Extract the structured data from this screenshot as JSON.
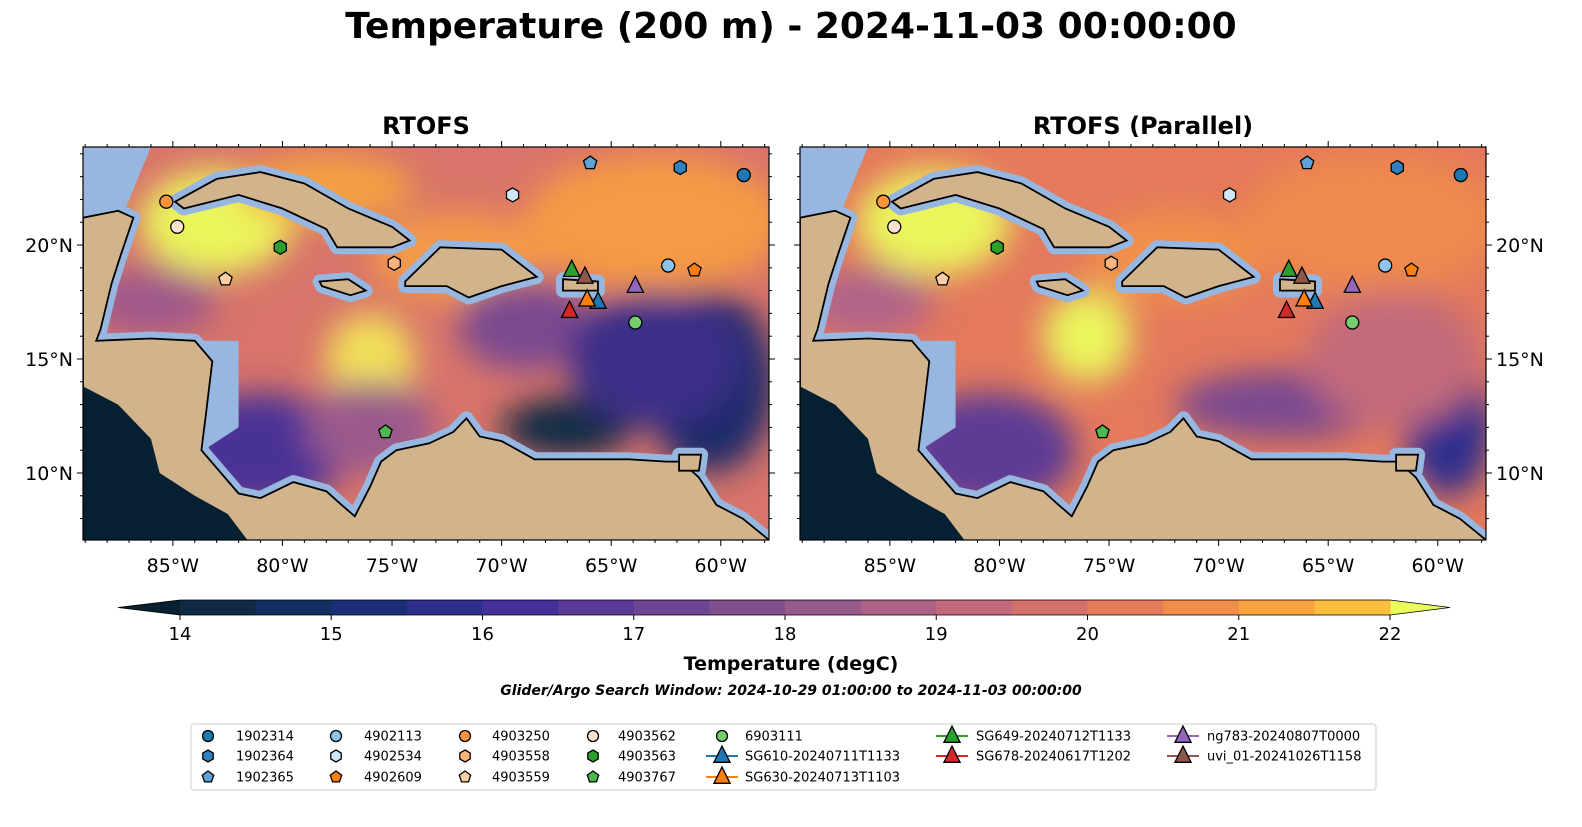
{
  "title": "Temperature (200 m) - 2024-11-03 00:00:00",
  "panels": [
    {
      "title": "RTOFS",
      "model": "rtofs"
    },
    {
      "title": "RTOFS (Parallel)",
      "model": "parallel"
    }
  ],
  "chart_data": {
    "type": "heatmap",
    "extent": {
      "lon": [
        -89.1,
        -57.8
      ],
      "lat": [
        7.06,
        24.3
      ]
    },
    "lon_ticks": [
      -85,
      -80,
      -75,
      -70,
      -65,
      -60
    ],
    "lon_tick_labels": [
      "85°W",
      "80°W",
      "75°W",
      "70°W",
      "65°W",
      "60°W"
    ],
    "lat_ticks": [
      10,
      15,
      20
    ],
    "lat_tick_labels": [
      "10°N",
      "15°N",
      "20°N"
    ],
    "colorbar": {
      "label": "Temperature (degC)",
      "min": 14,
      "max": 22,
      "step": 0.5,
      "extend": "both",
      "ticks": [
        14,
        15,
        16,
        17,
        18,
        19,
        20,
        21,
        22
      ],
      "tick_labels": [
        "14",
        "15",
        "16",
        "17",
        "18",
        "19",
        "20",
        "21",
        "22"
      ],
      "colors": [
        "#0f2a45",
        "#132f5f",
        "#1b2f78",
        "#2d2d8c",
        "#45309a",
        "#5a3a96",
        "#6d4592",
        "#81508f",
        "#965a8c",
        "#ab6286",
        "#c06a7b",
        "#d2716c",
        "#e47c5c",
        "#f08e4b",
        "#f7a43f",
        "#fbbe3f"
      ],
      "under_color": "#08202f",
      "over_color": "#e9fb5d"
    },
    "search_window": "Glider/Argo Search Window: 2024-10-29 01:00:00 to 2024-11-03 00:00:00",
    "observations": [
      {
        "id": "1902314",
        "shape": "circle",
        "color": "#1f77b4",
        "lon": -58.95,
        "lat": 23.07
      },
      {
        "id": "1902364",
        "shape": "hexagon",
        "color": "#2f82bf",
        "lon": -61.85,
        "lat": 23.4
      },
      {
        "id": "1902365",
        "shape": "pentagon",
        "color": "#5aa2d8",
        "lon": -65.96,
        "lat": 23.6
      },
      {
        "id": "4902113",
        "shape": "circle",
        "color": "#8ec3ec",
        "lon": -62.4,
        "lat": 19.1
      },
      {
        "id": "4902534",
        "shape": "hexagon",
        "color": "#cfe6f8",
        "lon": -69.5,
        "lat": 22.2
      },
      {
        "id": "4902609",
        "shape": "pentagon",
        "color": "#ff7f0e",
        "lon": -61.2,
        "lat": 18.9
      },
      {
        "id": "4903250",
        "shape": "circle",
        "color": "#fd933b",
        "lon": -85.3,
        "lat": 21.9
      },
      {
        "id": "4903558",
        "shape": "hexagon",
        "color": "#fdb47a",
        "lon": -74.9,
        "lat": 19.2
      },
      {
        "id": "4903559",
        "shape": "pentagon",
        "color": "#fdcfa6",
        "lon": -82.6,
        "lat": 18.5
      },
      {
        "id": "4903562",
        "shape": "circle",
        "color": "#fde3cc",
        "lon": -84.8,
        "lat": 20.8
      },
      {
        "id": "4903563",
        "shape": "hexagon",
        "color": "#2ca02c",
        "lon": -80.1,
        "lat": 19.9
      },
      {
        "id": "4903767",
        "shape": "pentagon",
        "color": "#4db84d",
        "lon": -75.3,
        "lat": 11.8
      },
      {
        "id": "6903111",
        "shape": "circle",
        "color": "#74cf6c",
        "lon": -63.9,
        "lat": 16.6
      },
      {
        "id": "SG610-20240711T1133",
        "shape": "triangle",
        "color": "#1f77b4",
        "lon": -65.6,
        "lat": 17.5
      },
      {
        "id": "SG630-20240713T1103",
        "shape": "triangle",
        "color": "#ff7f0e",
        "lon": -66.1,
        "lat": 17.6
      },
      {
        "id": "SG649-20240712T1133",
        "shape": "triangle",
        "color": "#2ca02c",
        "lon": -66.8,
        "lat": 18.9
      },
      {
        "id": "SG678-20240617T1202",
        "shape": "triangle",
        "color": "#d62728",
        "lon": -66.9,
        "lat": 17.1
      },
      {
        "id": "ng783-20240807T0000",
        "shape": "triangle",
        "color": "#9467bd",
        "lon": -63.9,
        "lat": 18.2
      },
      {
        "id": "uvi_01-20241026T1158",
        "shape": "triangle",
        "color": "#8c564b",
        "lon": -66.2,
        "lat": 18.6
      }
    ]
  },
  "colors": {
    "land": "#d2b48c",
    "shelf": "#97b6e0",
    "pacific": "#062033"
  }
}
